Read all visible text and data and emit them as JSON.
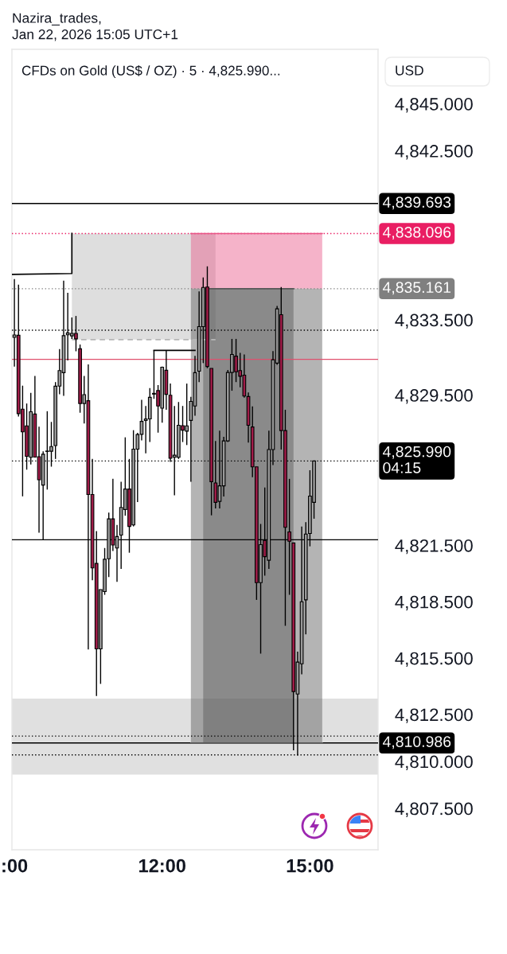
{
  "chart_data": {
    "type": "candlestick",
    "title": "Nazira_trades,\nJan 22, 2026 15:05 UTC+1",
    "subtitle": "CFDs on Gold (US$ / OZ) · 5 · 4,825.990...",
    "ylabel": "USD",
    "x": [
      "2026-01-22T09:00",
      "2026-01-22T09:05",
      "2026-01-22T09:10",
      "2026-01-22T09:15",
      "2026-01-22T09:20",
      "2026-01-22T09:25",
      "2026-01-22T09:30",
      "2026-01-22T09:35",
      "2026-01-22T09:40",
      "2026-01-22T09:45",
      "2026-01-22T09:50",
      "2026-01-22T09:55",
      "2026-01-22T10:00",
      "2026-01-22T10:05",
      "2026-01-22T10:10",
      "2026-01-22T10:15",
      "2026-01-22T10:20",
      "2026-01-22T10:25",
      "2026-01-22T10:30",
      "2026-01-22T10:35",
      "2026-01-22T10:40",
      "2026-01-22T10:45",
      "2026-01-22T10:50",
      "2026-01-22T10:55",
      "2026-01-22T11:00",
      "2026-01-22T11:05",
      "2026-01-22T11:10",
      "2026-01-22T11:15",
      "2026-01-22T11:20",
      "2026-01-22T11:25",
      "2026-01-22T11:30",
      "2026-01-22T11:35",
      "2026-01-22T11:40",
      "2026-01-22T11:45",
      "2026-01-22T11:50",
      "2026-01-22T11:55",
      "2026-01-22T12:00",
      "2026-01-22T12:05",
      "2026-01-22T12:10",
      "2026-01-22T12:15",
      "2026-01-22T12:20",
      "2026-01-22T12:25",
      "2026-01-22T12:30",
      "2026-01-22T12:35",
      "2026-01-22T12:40",
      "2026-01-22T12:45",
      "2026-01-22T12:50",
      "2026-01-22T12:55",
      "2026-01-22T13:00",
      "2026-01-22T13:05",
      "2026-01-22T13:10",
      "2026-01-22T13:15",
      "2026-01-22T13:20",
      "2026-01-22T13:25",
      "2026-01-22T13:30",
      "2026-01-22T13:35",
      "2026-01-22T13:40",
      "2026-01-22T13:45",
      "2026-01-22T13:50",
      "2026-01-22T13:55",
      "2026-01-22T14:00",
      "2026-01-22T14:05",
      "2026-01-22T14:10",
      "2026-01-22T14:15",
      "2026-01-22T14:20",
      "2026-01-22T14:25",
      "2026-01-22T14:30",
      "2026-01-22T14:35",
      "2026-01-22T14:40",
      "2026-01-22T14:45",
      "2026-01-22T14:50",
      "2026-01-22T14:55",
      "2026-01-22T15:00",
      "2026-01-22T15:05"
    ],
    "ohlc": [
      [
        4832.57,
        4835.67,
        4831.01,
        4832.7
      ],
      [
        4832.68,
        4835.38,
        4828.36,
        4828.51
      ],
      [
        4828.75,
        4830.0,
        4824.11,
        4827.54
      ],
      [
        4827.86,
        4829.05,
        4825.53,
        4826.24
      ],
      [
        4826.19,
        4829.62,
        4825.81,
        4828.61
      ],
      [
        4828.49,
        4830.52,
        4826.19,
        4826.2
      ],
      [
        4826.22,
        4827.82,
        4822.18,
        4824.99
      ],
      [
        4824.71,
        4826.51,
        4821.82,
        4826.35
      ],
      [
        4826.5,
        4828.64,
        4824.47,
        4826.52
      ],
      [
        4826.51,
        4828.07,
        4825.69,
        4826.76
      ],
      [
        4826.81,
        4830.19,
        4826.1,
        4829.97
      ],
      [
        4829.98,
        4831.95,
        4829.54,
        4830.8
      ],
      [
        4830.69,
        4835.59,
        4829.46,
        4832.66
      ],
      [
        4832.71,
        4834.94,
        4831.34,
        4832.81
      ],
      [
        4832.65,
        4833.63,
        4832.49,
        4832.78
      ],
      [
        4832.78,
        4833.71,
        4831.83,
        4832.49
      ],
      [
        4831.96,
        4832.19,
        4828.56,
        4829.05
      ],
      [
        4829.05,
        4830.52,
        4827.99,
        4829.52
      ],
      [
        4829.2,
        4831.13,
        4815.96,
        4824.21
      ],
      [
        4824.21,
        4826.1,
        4819.64,
        4820.3
      ],
      [
        4820.54,
        4822.26,
        4813.48,
        4815.99
      ],
      [
        4815.99,
        4819.15,
        4814.13,
        4819.15
      ],
      [
        4819.04,
        4821.36,
        4818.87,
        4820.76
      ],
      [
        4820.79,
        4823.24,
        4819.81,
        4822.91
      ],
      [
        4822.91,
        4825.04,
        4821.2,
        4821.52
      ],
      [
        4821.36,
        4822.59,
        4819.56,
        4821.97
      ],
      [
        4822.05,
        4824.88,
        4820.25,
        4823.52
      ],
      [
        4823.41,
        4827.25,
        4823.08,
        4824.5
      ],
      [
        4824.5,
        4826.1,
        4821.11,
        4822.51
      ],
      [
        4822.59,
        4827.63,
        4822.51,
        4826.62
      ],
      [
        4826.62,
        4827.49,
        4823.81,
        4827.4
      ],
      [
        4827.41,
        4829.25,
        4827.09,
        4828.1
      ],
      [
        4828.15,
        4828.92,
        4826.4,
        4828.23
      ],
      [
        4828.23,
        4829.87,
        4827.0,
        4829.38
      ],
      [
        4829.55,
        4831.88,
        4829.3,
        4829.59
      ],
      [
        4829.74,
        4830.03,
        4827.5,
        4828.92
      ],
      [
        4828.8,
        4831.01,
        4828.03,
        4830.98
      ],
      [
        4830.82,
        4831.88,
        4828.72,
        4829.54
      ],
      [
        4829.49,
        4830.11,
        4825.94,
        4826.14
      ],
      [
        4826.19,
        4828.92,
        4824.17,
        4826.3
      ],
      [
        4826.19,
        4829.13,
        4826.1,
        4827.89
      ],
      [
        4827.87,
        4828.92,
        4827.0,
        4827.63
      ],
      [
        4827.58,
        4830.11,
        4826.84,
        4827.86
      ],
      [
        4828.15,
        4829.41,
        4824.88,
        4829.16
      ],
      [
        4828.92,
        4831.59,
        4828.4,
        4830.69
      ],
      [
        4830.77,
        4835.02,
        4830.19,
        4833.14
      ],
      [
        4833.14,
        4835.76,
        4831.2,
        4835.23
      ],
      [
        4835.25,
        4836.35,
        4830.93,
        4831.02
      ],
      [
        4830.92,
        4830.92,
        4823.1,
        4824.89
      ],
      [
        4824.82,
        4827.06,
        4823.47,
        4823.79
      ],
      [
        4823.84,
        4827.61,
        4823.47,
        4824.67
      ],
      [
        4824.67,
        4827.28,
        4824.1,
        4827.06
      ],
      [
        4827.06,
        4830.83,
        4827.0,
        4830.7
      ],
      [
        4830.7,
        4832.49,
        4829.73,
        4831.66
      ],
      [
        4831.57,
        4832.49,
        4830.19,
        4830.74
      ],
      [
        4830.8,
        4831.75,
        4829.91,
        4830.5
      ],
      [
        4830.56,
        4831.66,
        4829.36,
        4829.45
      ],
      [
        4829.42,
        4829.64,
        4826.97,
        4827.89
      ],
      [
        4827.8,
        4828.9,
        4825.13,
        4825.68
      ],
      [
        4825.68,
        4825.68,
        4818.6,
        4819.52
      ],
      [
        4819.52,
        4822.64,
        4815.74,
        4821.54
      ],
      [
        4821.76,
        4824.58,
        4819.89,
        4820.9
      ],
      [
        4820.71,
        4827.61,
        4820.25,
        4826.6
      ],
      [
        4826.6,
        4831.84,
        4825.77,
        4831.38
      ],
      [
        4831.2,
        4834.24,
        4831.11,
        4834.09
      ],
      [
        4833.78,
        4835.25,
        4826.6,
        4827.61
      ],
      [
        4827.61,
        4828.72,
        4817.22,
        4822.46
      ],
      [
        4822.22,
        4825.04,
        4818.87,
        4821.72
      ],
      [
        4821.63,
        4821.63,
        4810.59,
        4813.72
      ],
      [
        4813.59,
        4815.84,
        4810.32,
        4815.29
      ],
      [
        4815.2,
        4822.5,
        4814.64,
        4818.5
      ],
      [
        4818.6,
        4822.74,
        4816.76,
        4822.1
      ],
      [
        4822.13,
        4825.5,
        4821.45,
        4824.12
      ],
      [
        4823.79,
        4825.99,
        4822.92,
        4825.99
      ]
    ],
    "colors": [
      "#9a9a9a",
      "#a01c48",
      "#a01c48",
      "#a01c48",
      "#9a9a9a",
      "#a01c48",
      "#a01c48",
      "#9a9a9a",
      "#9a9a9a",
      "#9a9a9a",
      "#9a9a9a",
      "#9a9a9a",
      "#9a9a9a",
      "#9a9a9a",
      "#9a9a9a",
      "#a01c48",
      "#a01c48",
      "#9a9a9a",
      "#a01c48",
      "#a01c48",
      "#a01c48",
      "#9a9a9a",
      "#9a9a9a",
      "#9a9a9a",
      "#a01c48",
      "#9a9a9a",
      "#9a9a9a",
      "#9a9a9a",
      "#a01c48",
      "#9a9a9a",
      "#9a9a9a",
      "#9a9a9a",
      "#9a9a9a",
      "#9a9a9a",
      "#9a9a9a",
      "#a01c48",
      "#9a9a9a",
      "#a01c48",
      "#a01c48",
      "#9a9a9a",
      "#9a9a9a",
      "#a01c48",
      "#9a9a9a",
      "#9a9a9a",
      "#9a9a9a",
      "#9a9a9a",
      "#9a9a9a",
      "#a01c48",
      "#a01c48",
      "#a01c48",
      "#9a9a9a",
      "#9a9a9a",
      "#9a9a9a",
      "#9a9a9a",
      "#a01c48",
      "#a01c48",
      "#a01c48",
      "#a01c48",
      "#a01c48",
      "#a01c48",
      "#9a9a9a",
      "#a01c48",
      "#9a9a9a",
      "#9a9a9a",
      "#9a9a9a",
      "#a01c48",
      "#a01c48",
      "#a01c48",
      "#a01c48",
      "#9a9a9a",
      "#9a9a9a",
      "#9a9a9a",
      "#9a9a9a",
      "#9a9a9a"
    ],
    "series": [
      {
        "type": "line",
        "color": "#b6b6b6",
        "line_style": "dashed",
        "x": [
          "2026-01-22T10:10",
          "2026-01-22T13:05"
        ],
        "values": [
          4832.45,
          4832.45
        ],
        "lower": [
          4832.45,
          4832.45
        ],
        "upper": [
          4838.1,
          4838.1
        ]
      },
      {
        "type": "line",
        "color": "#585858",
        "x": [
          "2026-01-22T12:35",
          "2026-01-22T15:15"
        ],
        "values": [
          4810.986,
          4810.986
        ],
        "lower": [
          4810.986,
          4810.986
        ],
        "upper": [
          4835.161,
          4835.161
        ]
      },
      {
        "type": "line",
        "color": "#575757",
        "x": [
          "2026-01-22T12:50",
          "2026-01-22T14:40"
        ],
        "values": [
          4835.161,
          4835.161
        ],
        "lower": [
          4810.986,
          4810.986
        ],
        "upper": [
          4835.161,
          4835.161
        ]
      },
      {
        "type": "line",
        "color": "#e95687",
        "x": [
          "2026-01-22T12:35",
          "2026-01-22T15:15"
        ],
        "values": [
          4838.096,
          4838.096
        ],
        "lower": [
          4835.161,
          4835.161
        ],
        "upper": [
          4838.096,
          4838.096
        ]
      },
      {
        "type": "line",
        "color": "#000000",
        "x": [
          "2026-01-22T08:57",
          "2026-01-22T10:10",
          "2026-01-22T10:10"
        ],
        "values": [
          4835.92,
          4835.97,
          4838.1
        ]
      },
      {
        "type": "line",
        "color": "#000000",
        "x": [
          "2026-01-22T11:50",
          "2026-01-22T12:40"
        ],
        "values": [
          4831.88,
          4831.88
        ]
      }
    ],
    "bands": [
      {
        "axis": "y",
        "from": 4809.3,
        "to": 4813.35,
        "color": "#e0e0e0"
      }
    ],
    "ref_lines": [
      {
        "axis": "y",
        "value": 4839.693,
        "label": "4,839.693",
        "color": "#000000",
        "line_style": "solid"
      },
      {
        "axis": "y",
        "value": 4838.096,
        "label": "4,838.096",
        "color": "#e91e63",
        "line_style": "dotted"
      },
      {
        "axis": "y",
        "value": 4835.161,
        "label": "4,835.161",
        "color": "#808080",
        "line_style": "dotted"
      },
      {
        "axis": "y",
        "value": 4832.95,
        "color": "#000000",
        "line_style": "dotted"
      },
      {
        "axis": "y",
        "value": 4831.4,
        "color": "#e0506e",
        "line_style": "solid"
      },
      {
        "axis": "y",
        "value": 4825.99,
        "label": "4,825.990\n04:15",
        "color": "#000000",
        "line_style": "dotted"
      },
      {
        "axis": "y",
        "value": 4821.8,
        "color": "#000000",
        "line_style": "solid"
      },
      {
        "axis": "y",
        "value": 4811.35,
        "color": "#000000",
        "line_style": "dotted"
      },
      {
        "axis": "y",
        "value": 4810.986,
        "label": "4,810.986",
        "color": "#000000",
        "line_style": "solid"
      },
      {
        "axis": "y",
        "value": 4810.35,
        "color": "#000000",
        "line_style": "dotted"
      }
    ],
    "xlim": [
      "2026-01-22T08:57",
      "2026-01-22T16:23"
    ],
    "xticks": [
      {
        "value": "2026-01-22T09:00",
        "label": ":00"
      },
      {
        "value": "2026-01-22T12:00",
        "label": "12:00"
      },
      {
        "value": "2026-01-22T15:00",
        "label": "15:00"
      }
    ],
    "ylim": [
      4805.3,
      4847.9
    ],
    "yticks": [
      {
        "value": 4845,
        "label": "4,845.000"
      },
      {
        "value": 4842.5,
        "label": "4,842.500"
      },
      {
        "value": 4833.5,
        "label": "4,833.500"
      },
      {
        "value": 4829.5,
        "label": "4,829.500"
      },
      {
        "value": 4821.5,
        "label": "4,821.500"
      },
      {
        "value": 4818.5,
        "label": "4,818.500"
      },
      {
        "value": 4815.5,
        "label": "4,815.500"
      },
      {
        "value": 4812.5,
        "label": "4,812.500"
      },
      {
        "value": 4810,
        "label": "4,810.000"
      },
      {
        "value": 4807.5,
        "label": "4,807.500"
      }
    ]
  }
}
